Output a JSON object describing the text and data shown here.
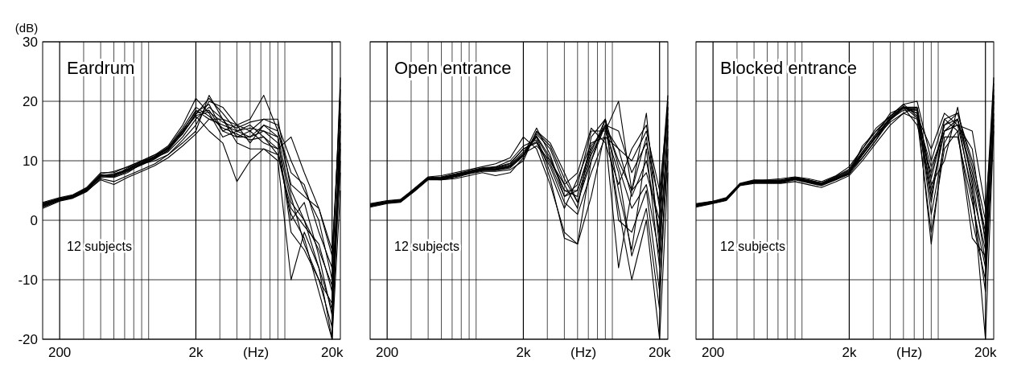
{
  "chart_data": [
    {
      "type": "line",
      "title": "Eardrum",
      "ylabel": "(dB)",
      "xlabel": "(Hz)",
      "annotations": [
        "12 subjects"
      ],
      "log": "x",
      "grid": true,
      "xlim": [
        150,
        23000
      ],
      "ylim": [
        -20,
        30
      ],
      "yticks": [
        -20,
        -10,
        0,
        10,
        20,
        30
      ],
      "xticks": [
        {
          "value": 200,
          "label": "200"
        },
        {
          "value": 300,
          "label": null
        },
        {
          "value": 400,
          "label": null
        },
        {
          "value": 500,
          "label": null
        },
        {
          "value": 600,
          "label": null
        },
        {
          "value": 700,
          "label": null
        },
        {
          "value": 800,
          "label": null
        },
        {
          "value": 900,
          "label": null
        },
        {
          "value": 2000,
          "label": "2k"
        },
        {
          "value": 3000,
          "label": null
        },
        {
          "value": 4000,
          "label": null
        },
        {
          "value": 5000,
          "label": null
        },
        {
          "value": 6000,
          "label": null
        },
        {
          "value": 7000,
          "label": null
        },
        {
          "value": 8000,
          "label": null
        },
        {
          "value": 9000,
          "label": null
        },
        {
          "value": 20000,
          "label": "20k"
        }
      ],
      "x": [
        150,
        200,
        250,
        315,
        400,
        500,
        630,
        800,
        1000,
        1250,
        1600,
        2000,
        2500,
        3150,
        4000,
        5000,
        6300,
        8000,
        10000,
        12500,
        16000,
        20000,
        23000
      ],
      "series": [
        {
          "color": "#000000",
          "values": [
            2.5,
            3.5,
            4,
            5,
            7.5,
            7.5,
            8.5,
            9.5,
            10.5,
            12,
            15,
            18.5,
            17,
            16,
            15,
            15.5,
            15,
            13,
            3,
            0,
            -8,
            -15,
            12
          ]
        },
        {
          "color": "#000000",
          "values": [
            3,
            3.8,
            4.3,
            5.5,
            8,
            8,
            9,
            10,
            11,
            12.5,
            16,
            20.5,
            18,
            14,
            15,
            16,
            14,
            11,
            1,
            -3,
            -12,
            -20,
            17
          ]
        },
        {
          "color": "#000000",
          "values": [
            2,
            3.2,
            3.7,
            4.8,
            7,
            6.5,
            7.5,
            8.5,
            9.5,
            11,
            13.5,
            16,
            20,
            19,
            16,
            17,
            21,
            15,
            6,
            4,
            2,
            -6,
            20
          ]
        },
        {
          "color": "#000000",
          "values": [
            2.8,
            3.6,
            4,
            5,
            7.5,
            7.8,
            8.5,
            10,
            10.5,
            11.5,
            14,
            17,
            19,
            17,
            14,
            14,
            16,
            14,
            -2,
            -5,
            -10,
            -18,
            10
          ]
        },
        {
          "color": "#000000",
          "values": [
            2.5,
            3.4,
            3.8,
            5.2,
            7.3,
            7.2,
            8,
            9.5,
            10,
            11,
            13,
            15,
            21,
            17,
            13,
            12,
            12,
            11,
            2,
            -1,
            -4,
            -12,
            15
          ]
        },
        {
          "color": "#000000",
          "values": [
            2.6,
            3.5,
            4.2,
            5.3,
            7.8,
            8.2,
            9,
            10,
            11,
            12,
            14.5,
            18,
            18.5,
            15,
            16,
            15,
            17,
            16,
            10,
            5,
            0,
            -10,
            8
          ]
        },
        {
          "color": "#000000",
          "values": [
            2.3,
            3.3,
            3.9,
            5,
            7.2,
            7.5,
            8.3,
            9.3,
            10.3,
            11.8,
            15,
            17.5,
            15,
            13,
            6.5,
            10,
            12,
            10,
            -10,
            -2,
            -8,
            -20,
            5
          ]
        },
        {
          "color": "#000000",
          "values": [
            2.7,
            3.7,
            4.1,
            5.4,
            7.6,
            7.4,
            8.8,
            9.8,
            10.8,
            12.3,
            15.5,
            19,
            17.5,
            15.5,
            14.5,
            13.5,
            14,
            12,
            14,
            8,
            2,
            -5,
            16
          ]
        },
        {
          "color": "#000000",
          "values": [
            2.4,
            3.5,
            4,
            5.1,
            7.4,
            7.6,
            8.4,
            9.6,
            10.6,
            12.2,
            14.8,
            17.8,
            20.5,
            18,
            15,
            14,
            15,
            14,
            4,
            -4,
            -10,
            -14,
            13
          ]
        },
        {
          "color": "#000000",
          "values": [
            2.9,
            3.6,
            4.2,
            5.2,
            7.6,
            7.7,
            8.6,
            9.7,
            10.7,
            12.1,
            15.2,
            18.2,
            19.5,
            15,
            14,
            15,
            13,
            12,
            0,
            3,
            -6,
            -16,
            18
          ]
        },
        {
          "color": "#000000",
          "values": [
            2.2,
            3.3,
            3.8,
            4.9,
            6.8,
            6,
            7.2,
            8.2,
            9.2,
            10.5,
            12.5,
            14.5,
            17,
            17,
            16,
            13,
            16,
            15,
            8,
            6,
            -2,
            -8,
            22
          ]
        },
        {
          "color": "#000000",
          "values": [
            2.6,
            3.5,
            4,
            5.1,
            7.5,
            7.3,
            8.2,
            9.4,
            10.4,
            11.7,
            14.6,
            17.6,
            18.2,
            16.5,
            15.5,
            16.5,
            17,
            17,
            5,
            0,
            -5,
            -11,
            24
          ]
        }
      ]
    },
    {
      "type": "line",
      "title": "Open entrance",
      "xlabel": "(Hz)",
      "annotations": [
        "12 subjects"
      ],
      "log": "x",
      "grid": true,
      "tick_labels": "x",
      "xlim": [
        150,
        23000
      ],
      "ylim": [
        -20,
        30
      ],
      "yticks": [
        -20,
        -10,
        0,
        10,
        20,
        30
      ],
      "xticks": [
        {
          "value": 200,
          "label": "200"
        },
        {
          "value": 300,
          "label": null
        },
        {
          "value": 400,
          "label": null
        },
        {
          "value": 500,
          "label": null
        },
        {
          "value": 600,
          "label": null
        },
        {
          "value": 700,
          "label": null
        },
        {
          "value": 800,
          "label": null
        },
        {
          "value": 900,
          "label": null
        },
        {
          "value": 2000,
          "label": "2k"
        },
        {
          "value": 3000,
          "label": null
        },
        {
          "value": 4000,
          "label": null
        },
        {
          "value": 5000,
          "label": null
        },
        {
          "value": 6000,
          "label": null
        },
        {
          "value": 7000,
          "label": null
        },
        {
          "value": 8000,
          "label": null
        },
        {
          "value": 9000,
          "label": null
        },
        {
          "value": 20000,
          "label": "20k"
        }
      ],
      "x": [
        150,
        200,
        250,
        315,
        400,
        500,
        630,
        800,
        1000,
        1250,
        1600,
        2000,
        2500,
        3150,
        4000,
        5000,
        6300,
        8000,
        10000,
        12500,
        16000,
        20000,
        23000
      ],
      "series": [
        {
          "color": "#000000",
          "values": [
            2.5,
            3,
            3.2,
            5,
            7,
            7,
            7.5,
            8,
            8.5,
            8.5,
            9,
            11,
            14,
            10,
            5,
            5,
            12,
            16,
            10,
            5,
            8,
            0,
            20
          ]
        },
        {
          "color": "#000000",
          "values": [
            2.8,
            3.3,
            3.5,
            5.3,
            7.3,
            7.5,
            8,
            8.5,
            9,
            9.5,
            10.5,
            14,
            12,
            6,
            -2,
            -4,
            4,
            15,
            20,
            5,
            18,
            -5,
            15
          ]
        },
        {
          "color": "#000000",
          "values": [
            2.2,
            2.8,
            3,
            4.8,
            6.8,
            6.8,
            7.2,
            7.8,
            8.2,
            8.2,
            8.5,
            10,
            15,
            13,
            8,
            3,
            10,
            17,
            5,
            -5,
            12,
            -8,
            10
          ]
        },
        {
          "color": "#000000",
          "values": [
            2.6,
            3.1,
            3.3,
            5.1,
            7.1,
            7.2,
            7.6,
            8.2,
            8.6,
            8.8,
            9.5,
            12,
            13,
            9,
            3,
            1,
            8,
            14,
            12,
            10,
            15,
            5,
            19
          ]
        },
        {
          "color": "#000000",
          "values": [
            2.4,
            2.9,
            3.1,
            4.9,
            6.9,
            6.8,
            7,
            7.5,
            8,
            7.5,
            8,
            10.5,
            14.5,
            12,
            6,
            2,
            14,
            17,
            0,
            -2,
            5,
            -12,
            12
          ]
        },
        {
          "color": "#000000",
          "values": [
            2.7,
            3.2,
            3.4,
            5.2,
            7.2,
            7.3,
            7.8,
            8.3,
            8.8,
            9,
            10,
            12.5,
            13.5,
            7,
            -3,
            -4,
            10,
            16,
            15,
            8,
            13,
            3,
            21
          ]
        },
        {
          "color": "#000000",
          "values": [
            2.3,
            2.9,
            3.1,
            4.9,
            6.9,
            6.9,
            7.3,
            7.9,
            8.4,
            8.4,
            9,
            11,
            15.5,
            11,
            4,
            6,
            15,
            15,
            8,
            -6,
            2,
            -15,
            17
          ]
        },
        {
          "color": "#000000",
          "values": [
            2.5,
            3,
            3.3,
            5,
            7,
            7.1,
            7.6,
            8.1,
            8.6,
            8.7,
            9.3,
            11.5,
            14,
            8,
            2,
            7,
            13,
            14,
            -8,
            5,
            14,
            -3,
            14
          ]
        },
        {
          "color": "#000000",
          "values": [
            2.6,
            3.1,
            3.3,
            5.1,
            7,
            7,
            7.4,
            8,
            8.4,
            8.6,
            9.2,
            11.2,
            12.5,
            10,
            6,
            8,
            15.5,
            13,
            6,
            12,
            16,
            2,
            18
          ]
        },
        {
          "color": "#000000",
          "values": [
            2.4,
            3,
            3.2,
            5,
            6.9,
            6.9,
            7.4,
            7.9,
            8.4,
            8.4,
            8.8,
            10.8,
            14.8,
            12.5,
            7,
            3,
            11,
            16,
            2,
            -10,
            0,
            -20,
            8
          ]
        },
        {
          "color": "#000000",
          "values": [
            2.7,
            3.1,
            3.3,
            5.2,
            7.1,
            7.2,
            7.7,
            8.2,
            8.7,
            8.9,
            9.6,
            12,
            13.2,
            9.5,
            4,
            5,
            12.5,
            15.5,
            12,
            4,
            10,
            -2,
            19
          ]
        },
        {
          "color": "#000000",
          "values": [
            2.5,
            3,
            3.2,
            5,
            7,
            7,
            7.5,
            8,
            8.5,
            8.5,
            9,
            11,
            14.2,
            10.5,
            5,
            4,
            11.5,
            17,
            9,
            2,
            6,
            -6,
            16
          ]
        }
      ]
    },
    {
      "type": "line",
      "title": "Blocked entrance",
      "xlabel": "(Hz)",
      "annotations": [
        "12 subjects"
      ],
      "log": "x",
      "grid": true,
      "tick_labels": "x",
      "xlim": [
        150,
        23000
      ],
      "ylim": [
        -20,
        30
      ],
      "yticks": [
        -20,
        -10,
        0,
        10,
        20,
        30
      ],
      "xticks": [
        {
          "value": 200,
          "label": "200"
        },
        {
          "value": 300,
          "label": null
        },
        {
          "value": 400,
          "label": null
        },
        {
          "value": 500,
          "label": null
        },
        {
          "value": 600,
          "label": null
        },
        {
          "value": 700,
          "label": null
        },
        {
          "value": 800,
          "label": null
        },
        {
          "value": 900,
          "label": null
        },
        {
          "value": 2000,
          "label": "2k"
        },
        {
          "value": 3000,
          "label": null
        },
        {
          "value": 4000,
          "label": null
        },
        {
          "value": 5000,
          "label": null
        },
        {
          "value": 6000,
          "label": null
        },
        {
          "value": 7000,
          "label": null
        },
        {
          "value": 8000,
          "label": null
        },
        {
          "value": 9000,
          "label": null
        },
        {
          "value": 20000,
          "label": "20k"
        }
      ],
      "x": [
        150,
        200,
        250,
        315,
        400,
        500,
        630,
        800,
        1000,
        1250,
        1600,
        2000,
        2500,
        3150,
        4000,
        5000,
        6300,
        8000,
        10000,
        12500,
        16000,
        20000,
        23000
      ],
      "series": [
        {
          "color": "#000000",
          "values": [
            2.5,
            3,
            3.5,
            6,
            6.5,
            6.5,
            6.5,
            7,
            6.5,
            6,
            7,
            8,
            11,
            14,
            17,
            19,
            18,
            5,
            15,
            16,
            5,
            -5,
            20
          ]
        },
        {
          "color": "#000000",
          "values": [
            2.8,
            3.2,
            3.8,
            6.2,
            6.8,
            6.8,
            7,
            7.3,
            7,
            6.5,
            7.5,
            9,
            12,
            15,
            17.5,
            19.5,
            20,
            10,
            17,
            18,
            10,
            0,
            24
          ]
        },
        {
          "color": "#000000",
          "values": [
            2.2,
            2.8,
            3.3,
            5.8,
            6.2,
            6.2,
            6.2,
            6.5,
            6,
            5.5,
            6.5,
            7.5,
            10,
            13,
            16,
            18,
            17,
            -2,
            12,
            15,
            0,
            -10,
            18
          ]
        },
        {
          "color": "#000000",
          "values": [
            2.6,
            3.1,
            3.6,
            6.1,
            6.6,
            6.7,
            6.8,
            7.2,
            6.8,
            6.2,
            7.2,
            8.5,
            11.5,
            14.5,
            18,
            19,
            16,
            8,
            16,
            17,
            8,
            -3,
            21
          ]
        },
        {
          "color": "#000000",
          "values": [
            2.4,
            2.9,
            3.4,
            5.9,
            6.4,
            6.3,
            6.3,
            6.8,
            6.3,
            5.8,
            6.8,
            7.8,
            12.5,
            15,
            17,
            18.5,
            18.5,
            -4,
            14,
            14,
            3,
            -8,
            15
          ]
        },
        {
          "color": "#000000",
          "values": [
            2.7,
            3.1,
            3.7,
            6.1,
            6.7,
            6.6,
            6.6,
            7.1,
            6.6,
            6.1,
            7.1,
            8.2,
            10.5,
            13.5,
            17.5,
            19.5,
            17.5,
            12,
            18,
            16,
            15,
            2,
            19
          ]
        },
        {
          "color": "#000000",
          "values": [
            2.3,
            2.9,
            3.4,
            5.9,
            6.3,
            6.4,
            6.4,
            6.9,
            6.4,
            5.9,
            6.9,
            7.9,
            11,
            14,
            16.5,
            18,
            19,
            6,
            10,
            19,
            6,
            -20,
            16
          ]
        },
        {
          "color": "#000000",
          "values": [
            2.5,
            3,
            3.5,
            6,
            6.5,
            6.5,
            6.6,
            7,
            6.5,
            6,
            7,
            8,
            11.5,
            14.5,
            17,
            19,
            18,
            3,
            17,
            15,
            -3,
            -6,
            22
          ]
        },
        {
          "color": "#000000",
          "values": [
            2.6,
            3.1,
            3.6,
            6.1,
            6.6,
            6.6,
            6.7,
            7.1,
            6.7,
            6.1,
            7.3,
            8.3,
            11.2,
            14.2,
            17.2,
            19.2,
            17.2,
            9,
            15,
            16,
            12,
            -4,
            23
          ]
        },
        {
          "color": "#000000",
          "values": [
            2.4,
            2.9,
            3.4,
            5.9,
            6.4,
            6.4,
            6.5,
            6.9,
            6.4,
            5.9,
            6.9,
            7.7,
            10.5,
            13.5,
            16.8,
            18.8,
            18.8,
            1,
            13,
            17,
            4,
            -12,
            17
          ]
        },
        {
          "color": "#000000",
          "values": [
            2.7,
            3.2,
            3.6,
            6.1,
            6.6,
            6.7,
            6.7,
            7.2,
            6.8,
            6.3,
            7.4,
            8.6,
            12,
            15.5,
            17.5,
            19,
            19,
            7,
            16,
            18,
            9,
            -2,
            20
          ]
        },
        {
          "color": "#000000",
          "values": [
            2.5,
            3,
            3.5,
            6,
            6.5,
            6.5,
            6.5,
            7,
            6.5,
            6,
            7,
            8,
            11,
            14,
            17,
            19,
            18.5,
            4,
            15,
            17,
            7,
            -7,
            21
          ]
        }
      ]
    }
  ]
}
